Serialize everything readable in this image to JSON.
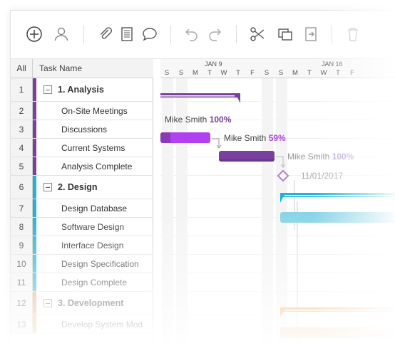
{
  "toolbar": {
    "buttons": [
      {
        "name": "add-icon"
      },
      {
        "name": "user-icon"
      },
      {
        "name": "attach-icon"
      },
      {
        "name": "notes-icon"
      },
      {
        "name": "comment-icon"
      },
      {
        "name": "undo-icon"
      },
      {
        "name": "redo-icon"
      },
      {
        "name": "cut-icon"
      },
      {
        "name": "copy-icon"
      },
      {
        "name": "paste-icon"
      },
      {
        "name": "delete-icon"
      }
    ]
  },
  "grid": {
    "header": {
      "all": "All",
      "task_name": "Task Name"
    },
    "rows": [
      {
        "num": "1",
        "label": "1. Analysis",
        "group": true,
        "color": "#7b3fa0"
      },
      {
        "num": "2",
        "label": "On-Site Meetings",
        "group": false,
        "color": "#7b3fa0"
      },
      {
        "num": "3",
        "label": "Discussions",
        "group": false,
        "color": "#7b3fa0"
      },
      {
        "num": "4",
        "label": "Current Systems",
        "group": false,
        "color": "#7b3fa0"
      },
      {
        "num": "5",
        "label": "Analysis Complete",
        "group": false,
        "color": "#7b3fa0"
      },
      {
        "num": "6",
        "label": "2. Design",
        "group": true,
        "color": "#1fb3d6"
      },
      {
        "num": "7",
        "label": "Design Database",
        "group": false,
        "color": "#1fb3d6"
      },
      {
        "num": "8",
        "label": "Software Design",
        "group": false,
        "color": "#1fb3d6"
      },
      {
        "num": "9",
        "label": "Interface Design",
        "group": false,
        "color": "#1fb3d6"
      },
      {
        "num": "10",
        "label": "Design Specification",
        "group": false,
        "color": "#1fb3d6"
      },
      {
        "num": "11",
        "label": "Design Complete",
        "group": false,
        "color": "#1fb3d6"
      },
      {
        "num": "12",
        "label": "3. Development",
        "group": true,
        "color": "#f0a050"
      },
      {
        "num": "13",
        "label": "Develop System Mod",
        "group": false,
        "color": "#f0a050"
      }
    ]
  },
  "timeline": {
    "weeks": [
      {
        "label": "JAN 9"
      },
      {
        "label": "JAN 16"
      }
    ],
    "days": [
      "S",
      "S",
      "M",
      "T",
      "W",
      "T",
      "F",
      "S",
      "S",
      "M",
      "T",
      "W",
      "T",
      "F"
    ],
    "labels": {
      "row2": {
        "name": "Mike Smith",
        "pct": "100%"
      },
      "row3": {
        "name": "Mike Smith",
        "pct": "59%"
      },
      "row4": {
        "name": "Mike Smith",
        "pct": "100%"
      },
      "row5": {
        "date": "11/01/2017"
      }
    },
    "progress": {
      "row3": 0.59,
      "row4": 1.0
    },
    "colors": {
      "analysis": "#7b3fa0",
      "analysis_light": "#b040f0",
      "design": "#1fb3d6",
      "development": "#f0a050"
    }
  }
}
